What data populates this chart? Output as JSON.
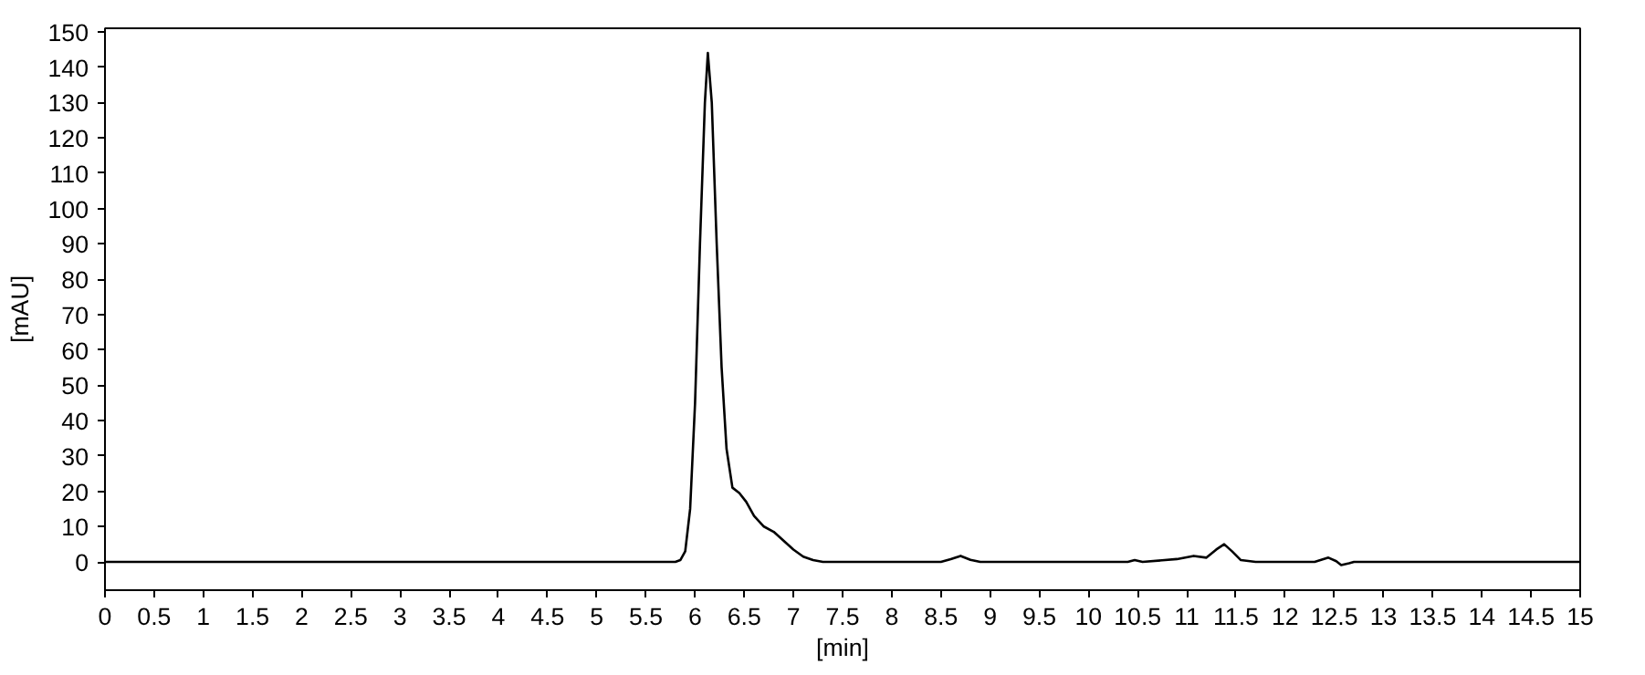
{
  "chart_data": {
    "type": "line",
    "xlabel": "[min]",
    "ylabel": "[mAU]",
    "series": [
      {
        "color": "#000000",
        "x": [
          0,
          5.8,
          5.85,
          5.9,
          5.95,
          6.0,
          6.05,
          6.1,
          6.13,
          6.17,
          6.22,
          6.27,
          6.32,
          6.38,
          6.45,
          6.52,
          6.6,
          6.7,
          6.8,
          6.9,
          7.0,
          7.1,
          7.2,
          7.3,
          8.5,
          8.6,
          8.7,
          8.8,
          8.9,
          10.4,
          10.47,
          10.55,
          10.9,
          11.07,
          11.2,
          11.3,
          11.38,
          11.46,
          11.55,
          11.7,
          12.3,
          12.44,
          12.52,
          12.57,
          12.65,
          12.7,
          15
        ],
        "values": [
          0,
          0,
          0.5,
          3,
          15,
          45,
          90,
          130,
          144,
          130,
          90,
          55,
          32,
          21,
          19.5,
          17,
          13,
          10,
          8.5,
          6,
          3.5,
          1.5,
          0.5,
          0,
          0,
          0.8,
          1.7,
          0.6,
          0,
          0,
          0.5,
          0,
          0.8,
          1.7,
          1.2,
          3.5,
          5,
          3,
          0.5,
          0,
          0,
          1.2,
          0.2,
          -0.9,
          -0.4,
          0,
          0
        ]
      }
    ],
    "xlim": [
      0,
      15
    ],
    "ylim": [
      -8,
      151
    ],
    "xticks": [
      0,
      0.5,
      1,
      1.5,
      2,
      2.5,
      3,
      3.5,
      4,
      4.5,
      5,
      5.5,
      6,
      6.5,
      7,
      7.5,
      8,
      8.5,
      9,
      9.5,
      10,
      10.5,
      11,
      11.5,
      12,
      12.5,
      13,
      13.5,
      14,
      14.5,
      15
    ],
    "yticks": [
      0,
      10,
      20,
      30,
      40,
      50,
      60,
      70,
      80,
      90,
      100,
      110,
      120,
      130,
      140,
      150
    ],
    "grid": false,
    "marker": "none",
    "line_style": "solid"
  }
}
